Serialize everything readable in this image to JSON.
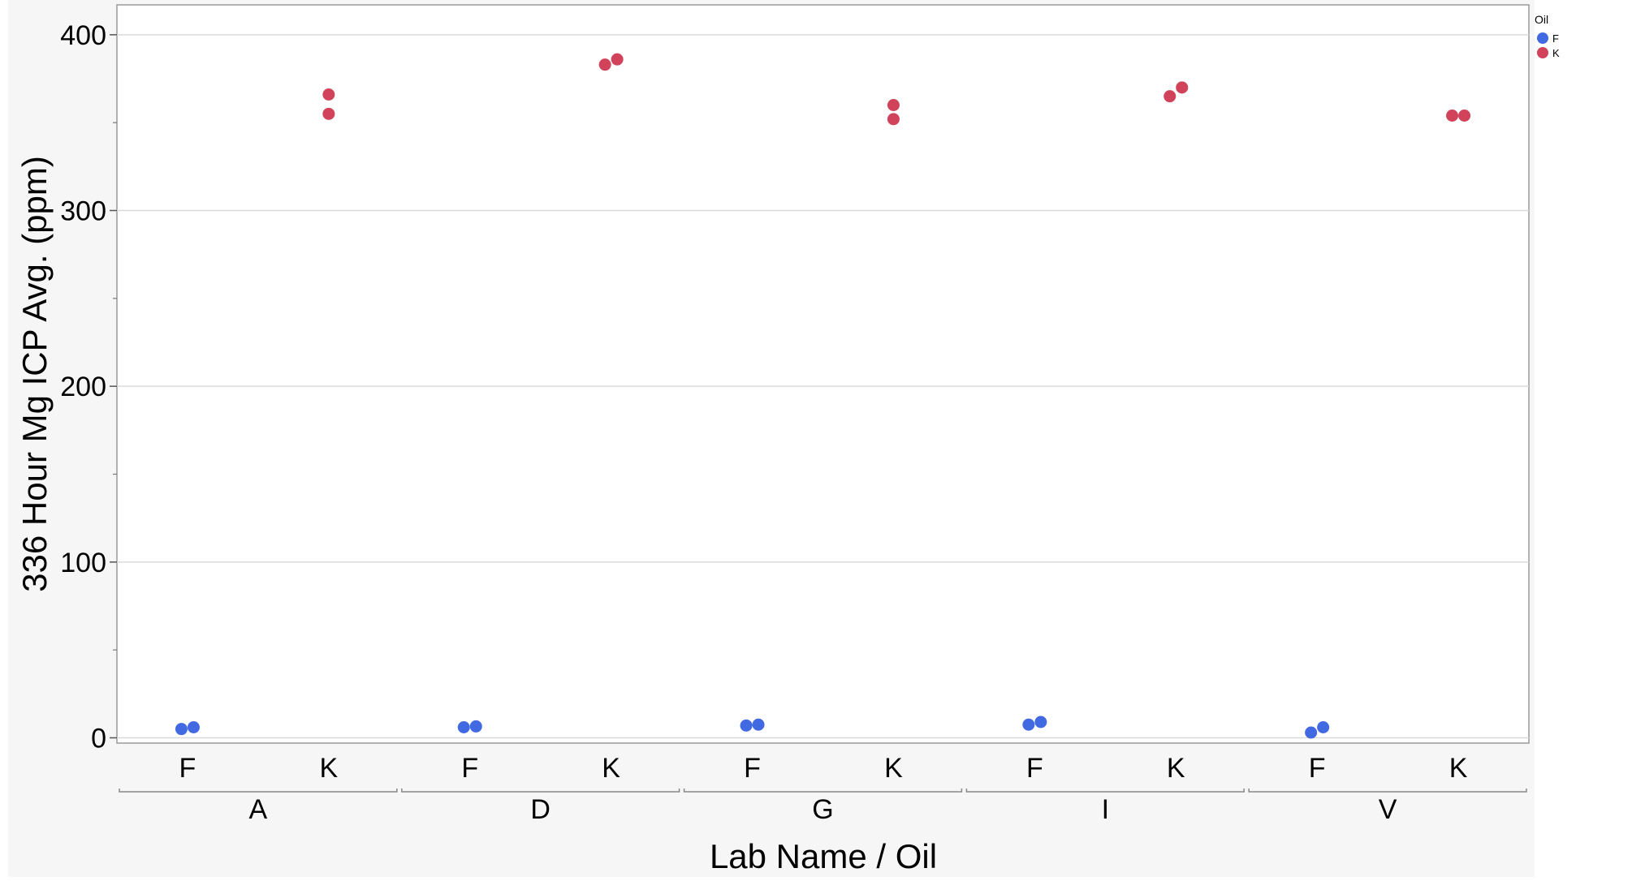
{
  "chart_data": {
    "type": "scatter",
    "xlabel": "Lab Name / Oil",
    "ylabel": "336 Hour Mg ICP Avg. (ppm)",
    "ylim": [
      -3,
      417
    ],
    "yticks": [
      0,
      100,
      200,
      300,
      400
    ],
    "y_minor_ticks": [
      50,
      150,
      250,
      350
    ],
    "grid": true,
    "groups": [
      "A",
      "D",
      "G",
      "I",
      "V"
    ],
    "subcategories": [
      "F",
      "K"
    ],
    "legend": {
      "title": "Oil",
      "placement": "top-right",
      "entries": [
        {
          "label": "F",
          "color": "#4169e1"
        },
        {
          "label": "K",
          "color": "#d0435a"
        }
      ]
    },
    "series": [
      {
        "name": "F",
        "color": "#4169e1",
        "points": [
          {
            "group": "A",
            "offset": -1,
            "y": 5
          },
          {
            "group": "A",
            "offset": 1,
            "y": 6
          },
          {
            "group": "D",
            "offset": -1,
            "y": 6
          },
          {
            "group": "D",
            "offset": 1,
            "y": 6.5
          },
          {
            "group": "G",
            "offset": -1,
            "y": 7
          },
          {
            "group": "G",
            "offset": 1,
            "y": 7.5
          },
          {
            "group": "I",
            "offset": -1,
            "y": 7.5
          },
          {
            "group": "I",
            "offset": 1,
            "y": 9
          },
          {
            "group": "V",
            "offset": -1,
            "y": 3
          },
          {
            "group": "V",
            "offset": 1,
            "y": 6
          }
        ]
      },
      {
        "name": "K",
        "color": "#d0435a",
        "points": [
          {
            "group": "A",
            "offset": 0,
            "y": 366
          },
          {
            "group": "A",
            "offset": 0,
            "y": 355
          },
          {
            "group": "D",
            "offset": -1,
            "y": 383
          },
          {
            "group": "D",
            "offset": 1,
            "y": 386
          },
          {
            "group": "G",
            "offset": 0,
            "y": 360
          },
          {
            "group": "G",
            "offset": 0,
            "y": 352
          },
          {
            "group": "I",
            "offset": -1,
            "y": 365
          },
          {
            "group": "I",
            "offset": 1,
            "y": 370
          },
          {
            "group": "V",
            "offset": -1,
            "y": 354
          },
          {
            "group": "V",
            "offset": 1,
            "y": 354
          }
        ]
      }
    ]
  }
}
